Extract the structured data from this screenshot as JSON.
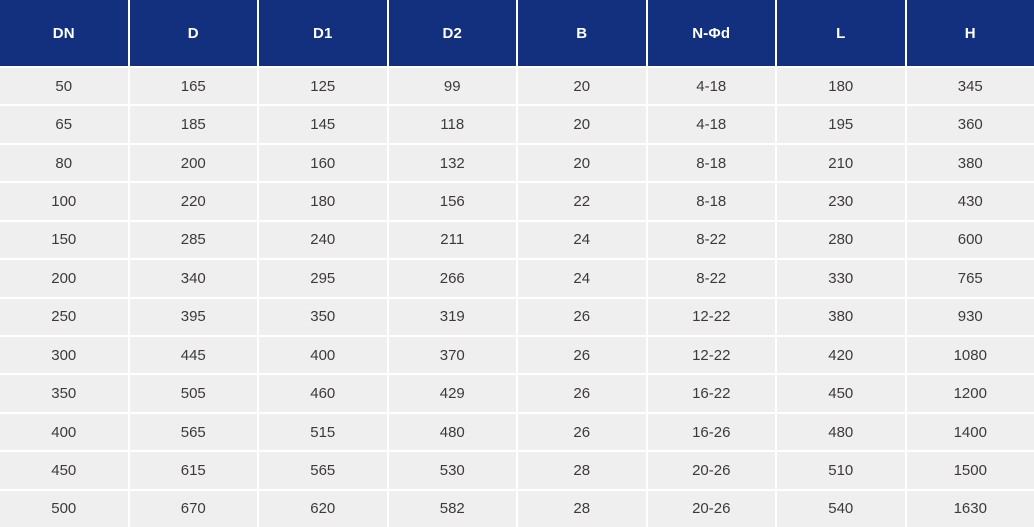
{
  "table": {
    "name": "dimension-spec-table",
    "columns": [
      "DN",
      "D",
      "D1",
      "D2",
      "B",
      "N-Φd",
      "L",
      "H"
    ],
    "rows": [
      [
        "50",
        "165",
        "125",
        "99",
        "20",
        "4-18",
        "180",
        "345"
      ],
      [
        "65",
        "185",
        "145",
        "118",
        "20",
        "4-18",
        "195",
        "360"
      ],
      [
        "80",
        "200",
        "160",
        "132",
        "20",
        "8-18",
        "210",
        "380"
      ],
      [
        "100",
        "220",
        "180",
        "156",
        "22",
        "8-18",
        "230",
        "430"
      ],
      [
        "150",
        "285",
        "240",
        "211",
        "24",
        "8-22",
        "280",
        "600"
      ],
      [
        "200",
        "340",
        "295",
        "266",
        "24",
        "8-22",
        "330",
        "765"
      ],
      [
        "250",
        "395",
        "350",
        "319",
        "26",
        "12-22",
        "380",
        "930"
      ],
      [
        "300",
        "445",
        "400",
        "370",
        "26",
        "12-22",
        "420",
        "1080"
      ],
      [
        "350",
        "505",
        "460",
        "429",
        "26",
        "16-22",
        "450",
        "1200"
      ],
      [
        "400",
        "565",
        "515",
        "480",
        "26",
        "16-26",
        "480",
        "1400"
      ],
      [
        "450",
        "615",
        "565",
        "530",
        "28",
        "20-26",
        "510",
        "1500"
      ],
      [
        "500",
        "670",
        "620",
        "582",
        "28",
        "20-26",
        "540",
        "1630"
      ]
    ]
  },
  "colors": {
    "header_bg": "#12307e",
    "header_text": "#ffffff",
    "cell_bg": "#efefef",
    "cell_text": "#3f3939",
    "grid_line": "#ffffff"
  }
}
